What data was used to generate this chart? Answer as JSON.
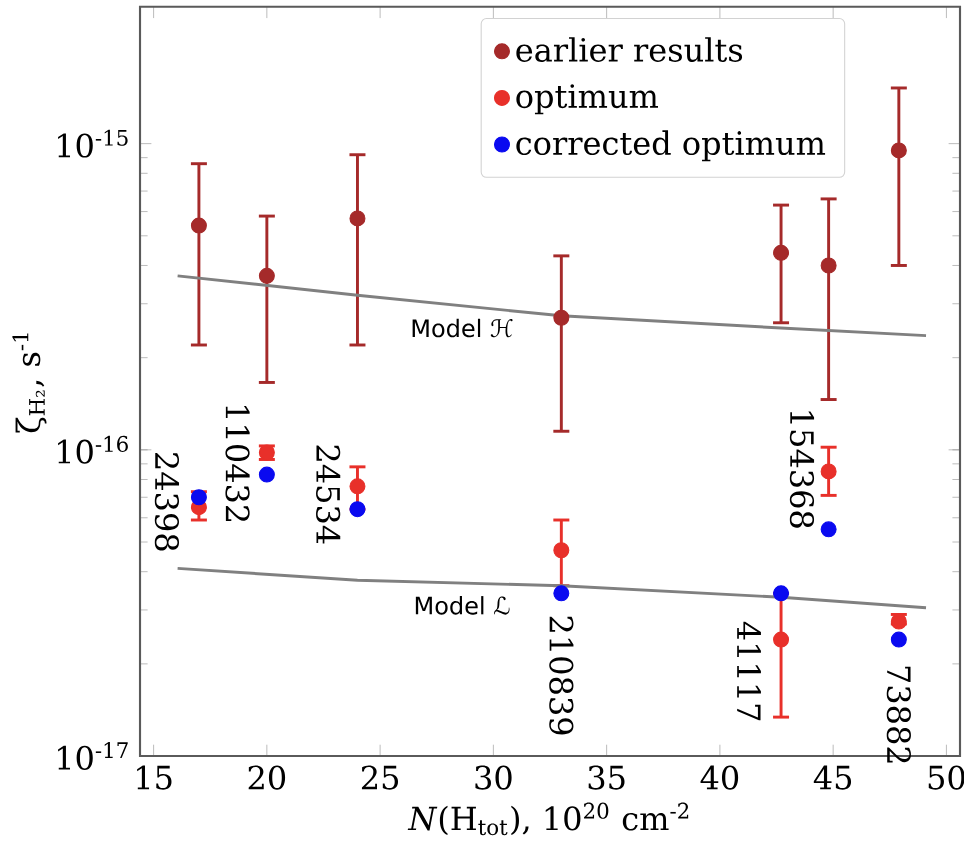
{
  "chart_data": {
    "type": "scatter",
    "xlabel": "*N*(H$_{tot}$), 10$^{20}$ cm$^{-2}$",
    "ylabel": "ζ$_{H₂}$, s$^{-1}$",
    "log": "y",
    "grid": false,
    "legend": "top right",
    "xlim": [
      14.4,
      50.6
    ],
    "ylim": [
      1e-17,
      2.8e-15
    ],
    "xticks": [
      15,
      20,
      25,
      30,
      35,
      40,
      45,
      50
    ],
    "yticks": [
      {
        "value": 1e-17,
        "label": "10$^{-17}$"
      },
      {
        "value": 1e-16,
        "label": "10$^{-16}$"
      },
      {
        "value": 1e-15,
        "label": "10$^{-15}$"
      }
    ],
    "series": [
      {
        "name": "earlier results",
        "marker": "circle",
        "color": "#a52a2a",
        "x": [
          17,
          20,
          24,
          33,
          42.7,
          44.8,
          47.9
        ],
        "values": [
          5.4e-16,
          3.7e-16,
          5.7e-16,
          2.7e-16,
          4.4e-16,
          4e-16,
          9.5e-16
        ],
        "errors": [
          [
            2.2e-16,
            8.6e-16
          ],
          [
            1.66e-16,
            5.8e-16
          ],
          [
            2.2e-16,
            9.2e-16
          ],
          [
            1.15e-16,
            4.3e-16
          ],
          [
            2.6e-16,
            6.3e-16
          ],
          [
            1.46e-16,
            6.6e-16
          ],
          [
            4e-16,
            1.52e-15
          ]
        ]
      },
      {
        "name": "optimum",
        "marker": "circle",
        "color": "#e8302a",
        "x": [
          17,
          20,
          24,
          33,
          42.7,
          44.8,
          47.9
        ],
        "values": [
          6.5e-17,
          9.8e-17,
          7.6e-17,
          4.7e-17,
          2.4e-17,
          8.5e-17,
          2.75e-17
        ],
        "errors": [
          [
            5.9e-17,
            7.3e-17
          ],
          [
            9.3e-17,
            1.03e-16
          ],
          [
            6.4e-17,
            8.8e-17
          ],
          [
            3.6e-17,
            5.9e-17
          ],
          [
            1.34e-17,
            3.4e-17
          ],
          [
            7.1e-17,
            1.02e-16
          ],
          [
            2.7e-17,
            2.9e-17
          ]
        ]
      },
      {
        "name": "corrected optimum",
        "marker": "circle",
        "color": "#0a0af0",
        "x": [
          17,
          20,
          24,
          33,
          42.7,
          44.8,
          47.9
        ],
        "values": [
          7e-17,
          8.3e-17,
          6.4e-17,
          3.4e-17,
          3.4e-17,
          5.5e-17,
          2.4e-17
        ]
      },
      {
        "name": "Model ℋ",
        "type": "line",
        "marker": "none",
        "color": "#808080",
        "x": [
          16.06,
          24,
          33,
          42.7,
          49.1
        ],
        "values": [
          3.7e-16,
          3.2e-16,
          2.74e-16,
          2.5e-16,
          2.36e-16
        ]
      },
      {
        "name": "Model ℒ",
        "type": "line",
        "marker": "none",
        "color": "#808080",
        "x": [
          16.06,
          24,
          33,
          42.7,
          49.1
        ],
        "values": [
          4.1e-17,
          3.75e-17,
          3.6e-17,
          3.3e-17,
          3.05e-17
        ]
      }
    ],
    "annotations": [
      {
        "text": "24398",
        "x": 17,
        "y": 6.5e-17
      },
      {
        "text": "110432",
        "x": 20,
        "y": 9.8e-17
      },
      {
        "text": "24534",
        "x": 24,
        "y": 7.6e-17
      },
      {
        "text": "210839",
        "x": 33,
        "y": 4.7e-17
      },
      {
        "text": "41117",
        "x": 42.7,
        "y": 2.4e-17
      },
      {
        "text": "154368",
        "x": 44.8,
        "y": 8.5e-17
      },
      {
        "text": "73882",
        "x": 47.9,
        "y": 2.75e-17
      }
    ]
  }
}
